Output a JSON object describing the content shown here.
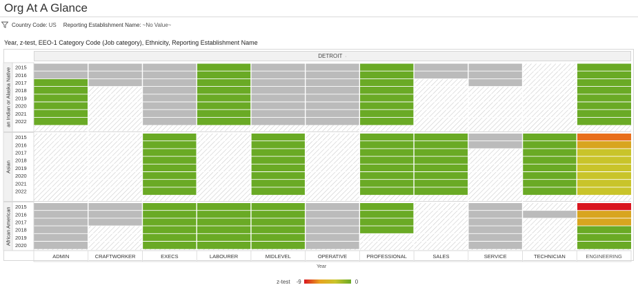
{
  "page": {
    "title": "Org At A Glance",
    "filters": [
      {
        "key": "Country Code:",
        "value": "US"
      },
      {
        "key": "Reporting Establishment Name:",
        "value": "~No Value~"
      }
    ],
    "filter_icon": "funnel-icon"
  },
  "chart_data": {
    "type": "heatmap",
    "title": "Year, z-test, EEO-1 Category Code (Job category), Ethnicity, Reporting Establishment Name",
    "column_group": "DETROIT",
    "xlabel": "Year",
    "columns": [
      "ADMIN",
      "CRAFTWORKER",
      "EXECS",
      "LABOURER",
      "MIDLEVEL",
      "OPERATIVE",
      "PROFESSIONAL",
      "SALES",
      "SERVICE",
      "TECHNICIAN",
      "ENGINEERING"
    ],
    "legend": {
      "title": "z-test",
      "min": "-9",
      "max": "0"
    },
    "colors": {
      "null": "#bbbbbb",
      "max": "#6aaa25",
      "mid_high": "#c9c42a",
      "mid": "#d8a51f",
      "mid_low": "#e86f1c",
      "min": "#d9161f",
      "nodata_hatch": "#cccccc"
    },
    "groups": [
      {
        "ethnicity": "American Indian or Alaska Native",
        "ethnicity_label": "an Indian or Alaska Native",
        "years": [
          "2015",
          "2016",
          "2017",
          "2018",
          "2019",
          "2020",
          "2021",
          "2022"
        ],
        "cells": [
          [
            "null",
            "null",
            "null",
            "0",
            "null",
            "null",
            "0",
            "null",
            "null",
            "none",
            "0"
          ],
          [
            "null",
            "null",
            "null",
            "0",
            "null",
            "null",
            "0",
            "null",
            "null",
            "none",
            "0"
          ],
          [
            "0",
            "null",
            "null",
            "0",
            "null",
            "null",
            "0",
            "none",
            "null",
            "none",
            "0"
          ],
          [
            "0",
            "none",
            "null",
            "0",
            "null",
            "null",
            "0",
            "none",
            "none",
            "none",
            "0"
          ],
          [
            "0",
            "none",
            "null",
            "0",
            "null",
            "null",
            "0",
            "none",
            "none",
            "none",
            "0"
          ],
          [
            "0",
            "none",
            "null",
            "0",
            "null",
            "null",
            "0",
            "none",
            "none",
            "none",
            "0"
          ],
          [
            "0",
            "none",
            "null",
            "0",
            "null",
            "null",
            "0",
            "none",
            "none",
            "none",
            "0"
          ],
          [
            "0",
            "none",
            "null",
            "0",
            "null",
            "null",
            "0",
            "none",
            "none",
            "none",
            "0"
          ]
        ]
      },
      {
        "ethnicity": "Asian",
        "ethnicity_label": "Asian",
        "years": [
          "2015",
          "2016",
          "2017",
          "2018",
          "2019",
          "2020",
          "2021",
          "2022"
        ],
        "cells": [
          [
            "none",
            "none",
            "0",
            "none",
            "0",
            "none",
            "0",
            "0",
            "null",
            "0",
            "-5"
          ],
          [
            "none",
            "none",
            "0",
            "none",
            "0",
            "none",
            "0",
            "0",
            "null",
            "0",
            "-3"
          ],
          [
            "none",
            "none",
            "0",
            "none",
            "0",
            "none",
            "0",
            "0",
            "none",
            "0",
            "-2"
          ],
          [
            "none",
            "none",
            "0",
            "none",
            "0",
            "none",
            "0",
            "0",
            "none",
            "0",
            "-2"
          ],
          [
            "none",
            "none",
            "0",
            "none",
            "0",
            "none",
            "0",
            "0",
            "none",
            "0",
            "-2"
          ],
          [
            "none",
            "none",
            "0",
            "none",
            "0",
            "none",
            "0",
            "0",
            "none",
            "0",
            "-2"
          ],
          [
            "none",
            "none",
            "0",
            "none",
            "0",
            "none",
            "0",
            "0",
            "none",
            "0",
            "-2"
          ],
          [
            "none",
            "none",
            "0",
            "none",
            "0",
            "none",
            "0",
            "0",
            "none",
            "0",
            "-2"
          ]
        ]
      },
      {
        "ethnicity": "African American",
        "ethnicity_label": "African American",
        "years": [
          "2015",
          "2016",
          "2017",
          "2018",
          "2019",
          "2020"
        ],
        "cells": [
          [
            "null",
            "null",
            "0",
            "0",
            "0",
            "null",
            "0",
            "none",
            "null",
            "none",
            "-9"
          ],
          [
            "null",
            "null",
            "0",
            "0",
            "0",
            "null",
            "0",
            "none",
            "null",
            "null",
            "-3"
          ],
          [
            "null",
            "null",
            "0",
            "0",
            "0",
            "null",
            "0",
            "none",
            "null",
            "none",
            "-3"
          ],
          [
            "null",
            "none",
            "0",
            "0",
            "0",
            "null",
            "0",
            "none",
            "null",
            "none",
            "0"
          ],
          [
            "null",
            "none",
            "0",
            "0",
            "0",
            "null",
            "none",
            "none",
            "null",
            "none",
            "0"
          ],
          [
            "null",
            "none",
            "0",
            "0",
            "0",
            "null",
            "none",
            "none",
            "null",
            "none",
            "0"
          ]
        ]
      }
    ]
  }
}
